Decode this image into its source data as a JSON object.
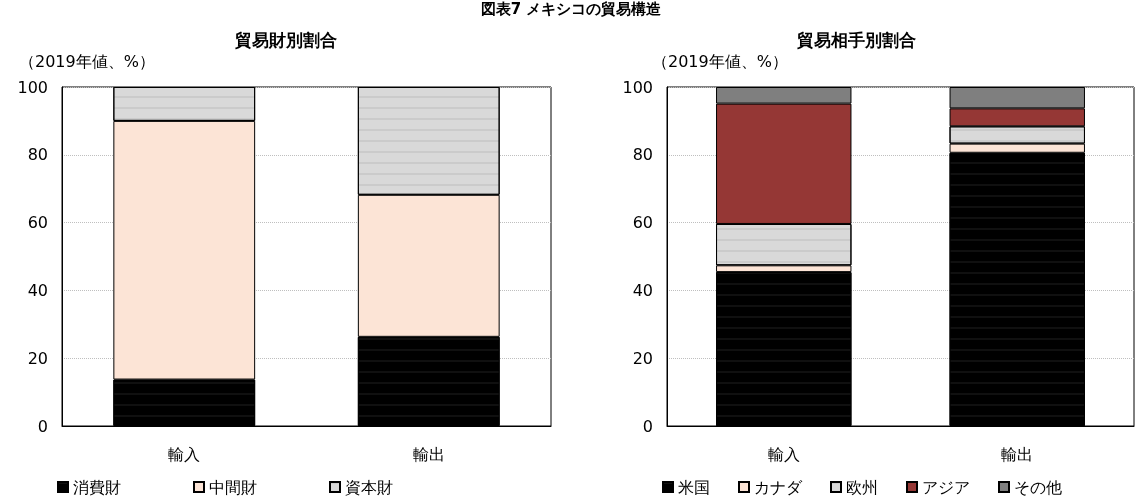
{
  "chart_data": [
    {
      "type": "bar",
      "title": "図表7 メキシコの貿易構造",
      "subtitle": "貿易財別割合",
      "ylabel": "（2019年値、%）",
      "categories": [
        "輸入",
        "輸出"
      ],
      "stacked": true,
      "ylim": [
        0,
        100
      ],
      "yticks": [
        0,
        20,
        40,
        60,
        80,
        100
      ],
      "grid": "y",
      "legend": "bottom",
      "series": [
        {
          "name": "消費財",
          "color": "#000000",
          "values": [
            13.7,
            26.3
          ]
        },
        {
          "name": "中間財",
          "color": "#fce4d6",
          "values": [
            76.3,
            41.9
          ]
        },
        {
          "name": "資本財",
          "color": "#d9d9d9",
          "values": [
            10.0,
            31.8
          ]
        }
      ]
    },
    {
      "type": "bar",
      "subtitle": "貿易相手別割合",
      "ylabel": "（2019年値、%）",
      "categories": [
        "輸入",
        "輸出"
      ],
      "stacked": true,
      "ylim": [
        0,
        100
      ],
      "yticks": [
        0,
        20,
        40,
        60,
        80,
        100
      ],
      "grid": "y",
      "legend": "bottom",
      "series": [
        {
          "name": "米国",
          "color": "#000000",
          "values": [
            45.4,
            80.6
          ]
        },
        {
          "name": "カナダ",
          "color": "#fce4d6",
          "values": [
            2.0,
            2.7
          ]
        },
        {
          "name": "欧州",
          "color": "#d9d9d9",
          "values": [
            12.2,
            5.1
          ]
        },
        {
          "name": "アジア",
          "color": "#953735",
          "values": [
            35.5,
            5.3
          ]
        },
        {
          "name": "その他",
          "color": "#7f7f7f",
          "values": [
            4.9,
            6.3
          ]
        }
      ]
    }
  ]
}
